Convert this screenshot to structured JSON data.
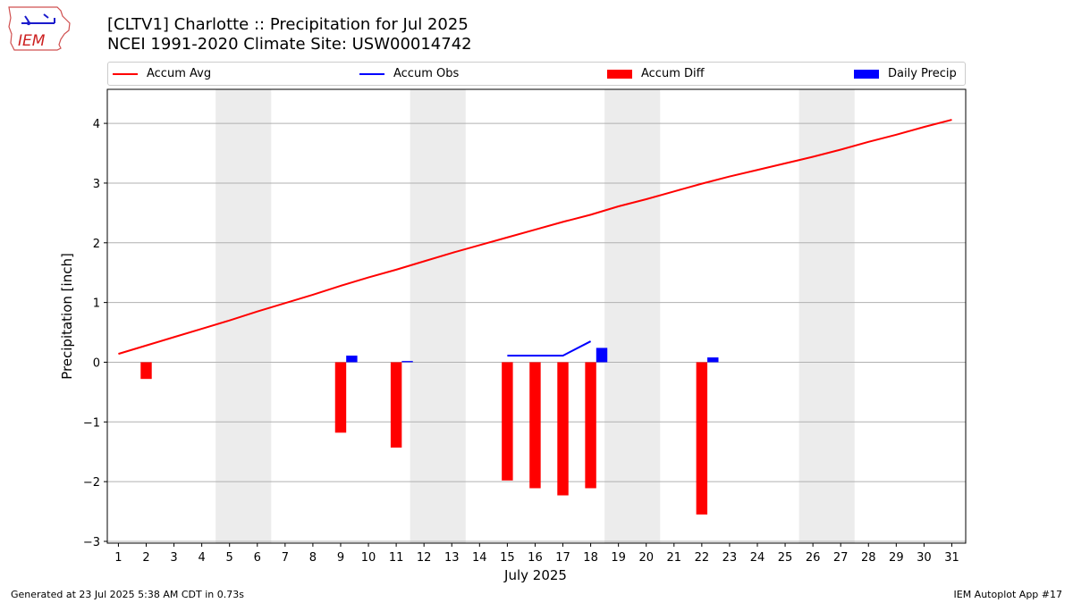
{
  "header": {
    "title_line1": "[CLTV1] Charlotte :: Precipitation for Jul 2025",
    "title_line2": "NCEI 1991-2020 Climate Site: USW00014742",
    "logo_text": "IEM"
  },
  "legend": {
    "accum_avg": "Accum Avg",
    "accum_obs": "Accum Obs",
    "accum_diff": "Accum Diff",
    "daily_precip": "Daily Precip"
  },
  "footer": {
    "generated": "Generated at 23 Jul 2025 5:38 AM CDT in 0.73s",
    "app": "IEM Autoplot App #17"
  },
  "colors": {
    "accum_avg": "#ff0000",
    "accum_obs": "#0000ff",
    "accum_diff": "#ff0000",
    "daily_precip": "#0000ff",
    "weekend_shade": "#ececec",
    "grid": "#b0b0b0"
  },
  "chart_data": {
    "type": "bar",
    "title": "[CLTV1] Charlotte :: Precipitation for Jul 2025",
    "subtitle": "NCEI 1991-2020 Climate Site: USW00014742",
    "xlabel": "July 2025",
    "ylabel": "Precipitation [inch]",
    "xlim": [
      0.6,
      31.5
    ],
    "ylim": [
      -3.03,
      4.57
    ],
    "x_ticks": [
      1,
      2,
      3,
      4,
      5,
      6,
      7,
      8,
      9,
      10,
      11,
      12,
      13,
      14,
      15,
      16,
      17,
      18,
      19,
      20,
      21,
      22,
      23,
      24,
      25,
      26,
      27,
      28,
      29,
      30,
      31
    ],
    "y_ticks": [
      -3,
      -2,
      -1,
      0,
      1,
      2,
      3,
      4
    ],
    "y_tick_labels": [
      "−3",
      "−2",
      "−1",
      "0",
      "1",
      "2",
      "3",
      "4"
    ],
    "grid": "horizontal",
    "legend_position": "top",
    "weekend_shading": [
      [
        4.5,
        6.5
      ],
      [
        11.5,
        13.5
      ],
      [
        18.5,
        20.5
      ],
      [
        25.5,
        27.5
      ]
    ],
    "series": [
      {
        "name": "Accum Avg",
        "kind": "line",
        "x": [
          1,
          2,
          3,
          4,
          5,
          6,
          7,
          8,
          9,
          10,
          11,
          12,
          13,
          14,
          15,
          16,
          17,
          18,
          19,
          20,
          21,
          22,
          23,
          24,
          25,
          26,
          27,
          28,
          29,
          30,
          31
        ],
        "values": [
          0.14,
          0.28,
          0.42,
          0.56,
          0.7,
          0.85,
          0.99,
          1.13,
          1.28,
          1.42,
          1.55,
          1.69,
          1.83,
          1.96,
          2.09,
          2.22,
          2.35,
          2.47,
          2.61,
          2.73,
          2.86,
          2.99,
          3.11,
          3.22,
          3.33,
          3.44,
          3.56,
          3.69,
          3.81,
          3.94,
          4.06
        ]
      },
      {
        "name": "Accum Obs",
        "kind": "line",
        "x": [
          15,
          16,
          17,
          18
        ],
        "values": [
          0.11,
          0.11,
          0.11,
          0.35
        ]
      },
      {
        "name": "Accum Diff",
        "kind": "bar",
        "x": [
          2,
          9,
          11,
          15,
          16,
          17,
          18,
          22
        ],
        "values": [
          -0.28,
          -1.18,
          -1.43,
          -1.98,
          -2.11,
          -2.23,
          -2.11,
          -2.55
        ]
      },
      {
        "name": "Daily Precip",
        "kind": "bar",
        "x": [
          9,
          11,
          18,
          22
        ],
        "values": [
          0.11,
          0.02,
          0.24,
          0.08
        ]
      }
    ]
  }
}
